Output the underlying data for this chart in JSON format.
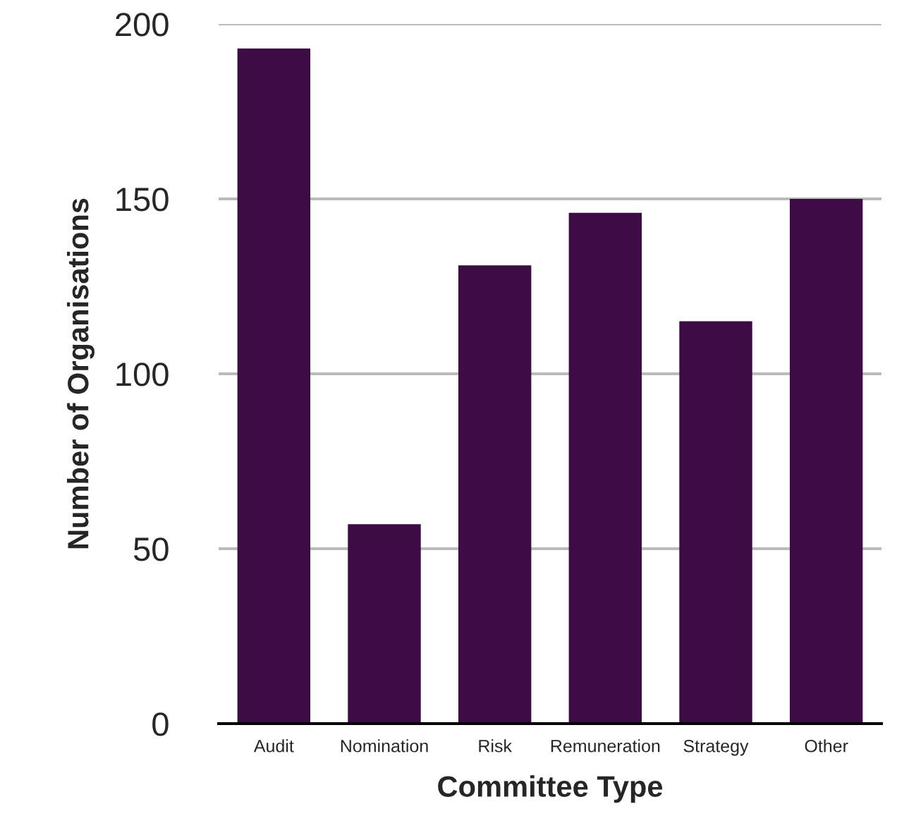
{
  "chart_data": {
    "type": "bar",
    "xlabel": "Committee Type",
    "ylabel": "Number of Organisations",
    "categories": [
      "Audit",
      "Nomination",
      "Risk",
      "Remuneration",
      "Strategy",
      "Other"
    ],
    "values": [
      193,
      57,
      131,
      146,
      115,
      150
    ],
    "color": "#3d0c45",
    "ylim": [
      0,
      200
    ],
    "yticks": [
      0,
      50,
      100,
      150,
      200
    ],
    "grid": "y",
    "legend": false
  }
}
